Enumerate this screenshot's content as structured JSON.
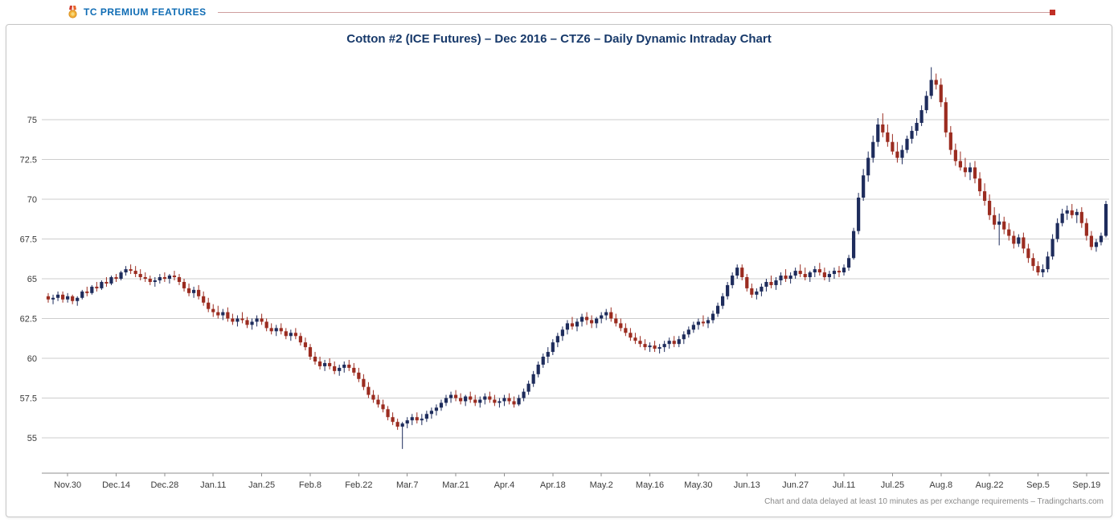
{
  "header": {
    "premium_label": "TC PREMIUM FEATURES",
    "premium_color": "#0f6cb4",
    "icons": {
      "medal": "medal-icon"
    },
    "divider_line_color": "#cf9e9e",
    "end_marker_color": "#c13026"
  },
  "chart": {
    "title": "Cotton #2 (ICE Futures) – Dec 2016 – CTZ6 – Daily Dynamic Intraday Chart",
    "footer_note": "Chart and data delayed at least 10 minutes as per exchange requirements – Tradingcharts.com"
  },
  "chart_data": {
    "type": "candlestick",
    "title": "Cotton #2 (ICE Futures) – Dec 2016 – CTZ6 – Daily Dynamic Intraday Chart",
    "xlabel": "",
    "ylabel": "",
    "ylim": [
      52.8,
      79.5
    ],
    "grid": "horizontal",
    "legend": "none",
    "up_color": "#1e2c5c",
    "down_color": "#9b2c20",
    "y_ticks": [
      55,
      57.5,
      60,
      62.5,
      65,
      67.5,
      70,
      72.5,
      75
    ],
    "x_tick_labels": [
      "Nov.30",
      "Dec.14",
      "Dec.28",
      "Jan.11",
      "Jan.25",
      "Feb.8",
      "Feb.22",
      "Mar.7",
      "Mar.21",
      "Apr.4",
      "Apr.18",
      "May.2",
      "May.16",
      "May.30",
      "Jun.13",
      "Jun.27",
      "Jul.11",
      "Jul.25",
      "Aug.8",
      "Aug.22",
      "Sep.5",
      "Sep.19"
    ],
    "x_tick_indices": [
      4,
      14,
      24,
      34,
      44,
      54,
      64,
      74,
      84,
      94,
      104,
      114,
      124,
      134,
      144,
      154,
      164,
      174,
      184,
      194,
      204,
      214
    ],
    "candles_ohlc": [
      [
        63.9,
        64.1,
        63.5,
        63.7
      ],
      [
        63.7,
        64.0,
        63.4,
        63.8
      ],
      [
        63.8,
        64.2,
        63.6,
        64.0
      ],
      [
        64.0,
        64.2,
        63.5,
        63.7
      ],
      [
        63.7,
        64.1,
        63.5,
        63.9
      ],
      [
        63.9,
        64.0,
        63.4,
        63.6
      ],
      [
        63.6,
        63.9,
        63.3,
        63.8
      ],
      [
        63.8,
        64.3,
        63.7,
        64.2
      ],
      [
        64.2,
        64.5,
        63.9,
        64.1
      ],
      [
        64.1,
        64.6,
        64.0,
        64.5
      ],
      [
        64.5,
        64.8,
        64.2,
        64.4
      ],
      [
        64.4,
        64.9,
        64.3,
        64.8
      ],
      [
        64.8,
        65.1,
        64.5,
        64.7
      ],
      [
        64.7,
        65.2,
        64.6,
        65.1
      ],
      [
        65.1,
        65.3,
        64.8,
        65.0
      ],
      [
        65.0,
        65.5,
        64.9,
        65.4
      ],
      [
        65.4,
        65.8,
        65.2,
        65.6
      ],
      [
        65.6,
        65.9,
        65.3,
        65.5
      ],
      [
        65.5,
        65.8,
        65.1,
        65.3
      ],
      [
        65.3,
        65.6,
        64.9,
        65.1
      ],
      [
        65.1,
        65.4,
        64.8,
        65.0
      ],
      [
        65.0,
        65.2,
        64.6,
        64.8
      ],
      [
        64.8,
        65.1,
        64.5,
        64.9
      ],
      [
        64.9,
        65.3,
        64.7,
        65.1
      ],
      [
        65.1,
        65.4,
        64.8,
        65.0
      ],
      [
        65.0,
        65.3,
        64.7,
        65.2
      ],
      [
        65.2,
        65.5,
        64.9,
        65.1
      ],
      [
        65.1,
        65.3,
        64.6,
        64.8
      ],
      [
        64.8,
        65.0,
        64.2,
        64.4
      ],
      [
        64.4,
        64.7,
        63.9,
        64.1
      ],
      [
        64.1,
        64.5,
        63.8,
        64.3
      ],
      [
        64.3,
        64.6,
        63.7,
        63.9
      ],
      [
        63.9,
        64.2,
        63.3,
        63.5
      ],
      [
        63.5,
        63.8,
        62.9,
        63.1
      ],
      [
        63.1,
        63.4,
        62.6,
        62.9
      ],
      [
        62.9,
        63.3,
        62.5,
        62.7
      ],
      [
        62.7,
        63.1,
        62.4,
        62.9
      ],
      [
        62.9,
        63.2,
        62.3,
        62.5
      ],
      [
        62.5,
        62.8,
        62.1,
        62.3
      ],
      [
        62.3,
        62.7,
        62.0,
        62.5
      ],
      [
        62.5,
        62.9,
        62.2,
        62.4
      ],
      [
        62.4,
        62.6,
        61.9,
        62.1
      ],
      [
        62.1,
        62.5,
        61.8,
        62.3
      ],
      [
        62.3,
        62.7,
        62.0,
        62.5
      ],
      [
        62.5,
        62.8,
        62.1,
        62.3
      ],
      [
        62.3,
        62.5,
        61.7,
        61.9
      ],
      [
        61.9,
        62.2,
        61.5,
        61.7
      ],
      [
        61.7,
        62.1,
        61.4,
        61.9
      ],
      [
        61.9,
        62.2,
        61.5,
        61.7
      ],
      [
        61.7,
        61.9,
        61.2,
        61.4
      ],
      [
        61.4,
        61.8,
        61.1,
        61.6
      ],
      [
        61.6,
        61.9,
        61.2,
        61.4
      ],
      [
        61.4,
        61.6,
        60.8,
        61.0
      ],
      [
        61.0,
        61.3,
        60.5,
        60.7
      ],
      [
        60.7,
        60.9,
        59.9,
        60.1
      ],
      [
        60.1,
        60.4,
        59.6,
        59.8
      ],
      [
        59.8,
        60.1,
        59.3,
        59.5
      ],
      [
        59.5,
        59.9,
        59.2,
        59.7
      ],
      [
        59.7,
        60.0,
        59.3,
        59.5
      ],
      [
        59.5,
        59.8,
        59.0,
        59.2
      ],
      [
        59.2,
        59.6,
        58.9,
        59.4
      ],
      [
        59.4,
        59.8,
        59.1,
        59.6
      ],
      [
        59.6,
        59.9,
        59.2,
        59.4
      ],
      [
        59.4,
        59.7,
        58.9,
        59.1
      ],
      [
        59.1,
        59.4,
        58.5,
        58.7
      ],
      [
        58.7,
        59.0,
        58.0,
        58.2
      ],
      [
        58.2,
        58.5,
        57.5,
        57.7
      ],
      [
        57.7,
        58.0,
        57.2,
        57.4
      ],
      [
        57.4,
        57.7,
        56.9,
        57.1
      ],
      [
        57.1,
        57.4,
        56.6,
        56.8
      ],
      [
        56.8,
        57.0,
        56.1,
        56.3
      ],
      [
        56.3,
        56.6,
        55.8,
        56.0
      ],
      [
        56.0,
        56.2,
        55.5,
        55.7
      ],
      [
        55.7,
        56.0,
        54.3,
        55.9
      ],
      [
        55.9,
        56.3,
        55.6,
        56.1
      ],
      [
        56.1,
        56.5,
        55.8,
        56.3
      ],
      [
        56.3,
        56.6,
        55.9,
        56.1
      ],
      [
        56.1,
        56.5,
        55.8,
        56.2
      ],
      [
        56.2,
        56.7,
        56.0,
        56.5
      ],
      [
        56.5,
        56.9,
        56.2,
        56.7
      ],
      [
        56.7,
        57.1,
        56.4,
        56.9
      ],
      [
        56.9,
        57.4,
        56.7,
        57.2
      ],
      [
        57.2,
        57.7,
        57.0,
        57.5
      ],
      [
        57.5,
        57.9,
        57.2,
        57.7
      ],
      [
        57.7,
        58.0,
        57.3,
        57.5
      ],
      [
        57.5,
        57.8,
        57.1,
        57.3
      ],
      [
        57.3,
        57.7,
        57.0,
        57.6
      ],
      [
        57.6,
        57.9,
        57.2,
        57.4
      ],
      [
        57.4,
        57.7,
        57.0,
        57.2
      ],
      [
        57.2,
        57.6,
        56.9,
        57.4
      ],
      [
        57.4,
        57.8,
        57.1,
        57.6
      ],
      [
        57.6,
        57.9,
        57.2,
        57.4
      ],
      [
        57.4,
        57.7,
        57.0,
        57.2
      ],
      [
        57.2,
        57.5,
        56.9,
        57.3
      ],
      [
        57.3,
        57.7,
        57.0,
        57.5
      ],
      [
        57.5,
        57.8,
        57.1,
        57.3
      ],
      [
        57.3,
        57.6,
        56.9,
        57.1
      ],
      [
        57.1,
        57.7,
        57.0,
        57.5
      ],
      [
        57.5,
        58.1,
        57.3,
        57.9
      ],
      [
        57.9,
        58.6,
        57.7,
        58.4
      ],
      [
        58.4,
        59.2,
        58.2,
        59.0
      ],
      [
        59.0,
        59.8,
        58.8,
        59.6
      ],
      [
        59.6,
        60.3,
        59.4,
        60.1
      ],
      [
        60.1,
        60.7,
        59.7,
        60.4
      ],
      [
        60.4,
        61.2,
        60.2,
        61.0
      ],
      [
        61.0,
        61.6,
        60.7,
        61.4
      ],
      [
        61.4,
        62.0,
        61.1,
        61.8
      ],
      [
        61.8,
        62.4,
        61.5,
        62.2
      ],
      [
        62.2,
        62.6,
        61.8,
        62.0
      ],
      [
        62.0,
        62.5,
        61.7,
        62.3
      ],
      [
        62.3,
        62.8,
        62.0,
        62.6
      ],
      [
        62.6,
        62.9,
        62.1,
        62.4
      ],
      [
        62.4,
        62.7,
        61.9,
        62.2
      ],
      [
        62.2,
        62.6,
        61.9,
        62.5
      ],
      [
        62.5,
        62.9,
        62.2,
        62.7
      ],
      [
        62.7,
        63.1,
        62.4,
        62.9
      ],
      [
        62.9,
        63.2,
        62.3,
        62.5
      ],
      [
        62.5,
        62.8,
        62.0,
        62.2
      ],
      [
        62.2,
        62.5,
        61.7,
        61.9
      ],
      [
        61.9,
        62.2,
        61.4,
        61.6
      ],
      [
        61.6,
        61.9,
        61.1,
        61.3
      ],
      [
        61.3,
        61.6,
        60.9,
        61.1
      ],
      [
        61.1,
        61.4,
        60.7,
        60.9
      ],
      [
        60.9,
        61.2,
        60.5,
        60.7
      ],
      [
        60.7,
        61.0,
        60.4,
        60.8
      ],
      [
        60.8,
        61.1,
        60.4,
        60.6
      ],
      [
        60.6,
        60.9,
        60.3,
        60.7
      ],
      [
        60.7,
        61.1,
        60.4,
        60.9
      ],
      [
        60.9,
        61.3,
        60.6,
        61.1
      ],
      [
        61.1,
        61.4,
        60.7,
        60.9
      ],
      [
        60.9,
        61.4,
        60.7,
        61.2
      ],
      [
        61.2,
        61.7,
        60.9,
        61.5
      ],
      [
        61.5,
        62.0,
        61.3,
        61.8
      ],
      [
        61.8,
        62.3,
        61.6,
        62.1
      ],
      [
        62.1,
        62.5,
        61.8,
        62.3
      ],
      [
        62.3,
        62.7,
        62.0,
        62.2
      ],
      [
        62.2,
        62.6,
        61.9,
        62.4
      ],
      [
        62.4,
        63.0,
        62.2,
        62.8
      ],
      [
        62.8,
        63.5,
        62.6,
        63.3
      ],
      [
        63.3,
        64.1,
        63.1,
        63.9
      ],
      [
        63.9,
        64.8,
        63.7,
        64.6
      ],
      [
        64.6,
        65.4,
        64.4,
        65.2
      ],
      [
        65.2,
        65.9,
        65.0,
        65.7
      ],
      [
        65.7,
        65.9,
        64.9,
        65.1
      ],
      [
        65.1,
        65.3,
        64.2,
        64.4
      ],
      [
        64.4,
        64.7,
        63.8,
        64.0
      ],
      [
        64.0,
        64.4,
        63.7,
        64.2
      ],
      [
        64.2,
        64.7,
        63.9,
        64.5
      ],
      [
        64.5,
        65.0,
        64.2,
        64.8
      ],
      [
        64.8,
        65.2,
        64.4,
        64.6
      ],
      [
        64.6,
        65.1,
        64.3,
        64.9
      ],
      [
        64.9,
        65.4,
        64.6,
        65.2
      ],
      [
        65.2,
        65.6,
        64.8,
        65.0
      ],
      [
        65.0,
        65.4,
        64.7,
        65.2
      ],
      [
        65.2,
        65.7,
        65.0,
        65.5
      ],
      [
        65.5,
        65.9,
        65.1,
        65.3
      ],
      [
        65.3,
        65.7,
        64.9,
        65.1
      ],
      [
        65.1,
        65.5,
        64.8,
        65.4
      ],
      [
        65.4,
        65.8,
        65.1,
        65.6
      ],
      [
        65.6,
        66.0,
        65.2,
        65.4
      ],
      [
        65.4,
        65.7,
        64.9,
        65.1
      ],
      [
        65.1,
        65.5,
        64.8,
        65.3
      ],
      [
        65.3,
        65.7,
        65.0,
        65.5
      ],
      [
        65.5,
        65.8,
        65.1,
        65.4
      ],
      [
        65.4,
        65.9,
        65.2,
        65.7
      ],
      [
        65.7,
        66.5,
        65.5,
        66.3
      ],
      [
        66.3,
        68.2,
        66.2,
        68.0
      ],
      [
        68.0,
        70.4,
        67.8,
        70.1
      ],
      [
        70.1,
        71.9,
        69.9,
        71.5
      ],
      [
        71.5,
        73.0,
        71.1,
        72.6
      ],
      [
        72.6,
        74.0,
        72.3,
        73.6
      ],
      [
        73.6,
        75.1,
        73.3,
        74.7
      ],
      [
        74.7,
        75.4,
        73.9,
        74.2
      ],
      [
        74.2,
        74.7,
        73.3,
        73.6
      ],
      [
        73.6,
        74.1,
        72.8,
        73.0
      ],
      [
        73.0,
        73.6,
        72.3,
        72.6
      ],
      [
        72.6,
        73.4,
        72.2,
        73.1
      ],
      [
        73.1,
        74.0,
        72.9,
        73.8
      ],
      [
        73.8,
        74.6,
        73.5,
        74.3
      ],
      [
        74.3,
        75.1,
        74.0,
        74.8
      ],
      [
        74.8,
        75.9,
        74.6,
        75.6
      ],
      [
        75.6,
        76.8,
        75.4,
        76.5
      ],
      [
        76.5,
        78.3,
        76.3,
        77.5
      ],
      [
        77.5,
        77.9,
        76.9,
        77.2
      ],
      [
        77.2,
        77.6,
        75.8,
        76.1
      ],
      [
        76.1,
        76.4,
        73.9,
        74.2
      ],
      [
        74.2,
        74.6,
        72.8,
        73.1
      ],
      [
        73.1,
        73.5,
        72.1,
        72.4
      ],
      [
        72.4,
        73.0,
        71.8,
        72.0
      ],
      [
        72.0,
        72.6,
        71.4,
        71.7
      ],
      [
        71.7,
        72.3,
        71.2,
        72.0
      ],
      [
        72.0,
        72.4,
        71.0,
        71.3
      ],
      [
        71.3,
        71.7,
        70.2,
        70.5
      ],
      [
        70.5,
        71.0,
        69.6,
        69.9
      ],
      [
        69.9,
        70.3,
        68.7,
        69.0
      ],
      [
        69.0,
        69.5,
        68.1,
        68.4
      ],
      [
        68.4,
        69.1,
        67.1,
        68.6
      ],
      [
        68.6,
        68.9,
        67.8,
        68.1
      ],
      [
        68.1,
        68.5,
        67.4,
        67.7
      ],
      [
        67.7,
        68.0,
        66.9,
        67.2
      ],
      [
        67.2,
        67.8,
        67.0,
        67.6
      ],
      [
        67.6,
        67.9,
        66.6,
        66.9
      ],
      [
        66.9,
        67.2,
        66.0,
        66.3
      ],
      [
        66.3,
        66.6,
        65.5,
        65.8
      ],
      [
        65.8,
        66.1,
        65.2,
        65.4
      ],
      [
        65.4,
        65.9,
        65.1,
        65.6
      ],
      [
        65.6,
        66.7,
        65.4,
        66.4
      ],
      [
        66.4,
        67.8,
        66.2,
        67.5
      ],
      [
        67.5,
        68.8,
        67.3,
        68.5
      ],
      [
        68.5,
        69.4,
        68.3,
        69.1
      ],
      [
        69.1,
        69.6,
        68.7,
        69.3
      ],
      [
        69.3,
        69.7,
        68.8,
        69.0
      ],
      [
        69.0,
        69.4,
        68.5,
        69.2
      ],
      [
        69.2,
        69.5,
        68.2,
        68.5
      ],
      [
        68.5,
        68.8,
        67.4,
        67.7
      ],
      [
        67.7,
        68.0,
        66.8,
        67.0
      ],
      [
        67.0,
        67.5,
        66.7,
        67.3
      ],
      [
        67.3,
        67.9,
        67.1,
        67.7
      ],
      [
        67.7,
        69.9,
        67.6,
        69.7
      ]
    ]
  }
}
